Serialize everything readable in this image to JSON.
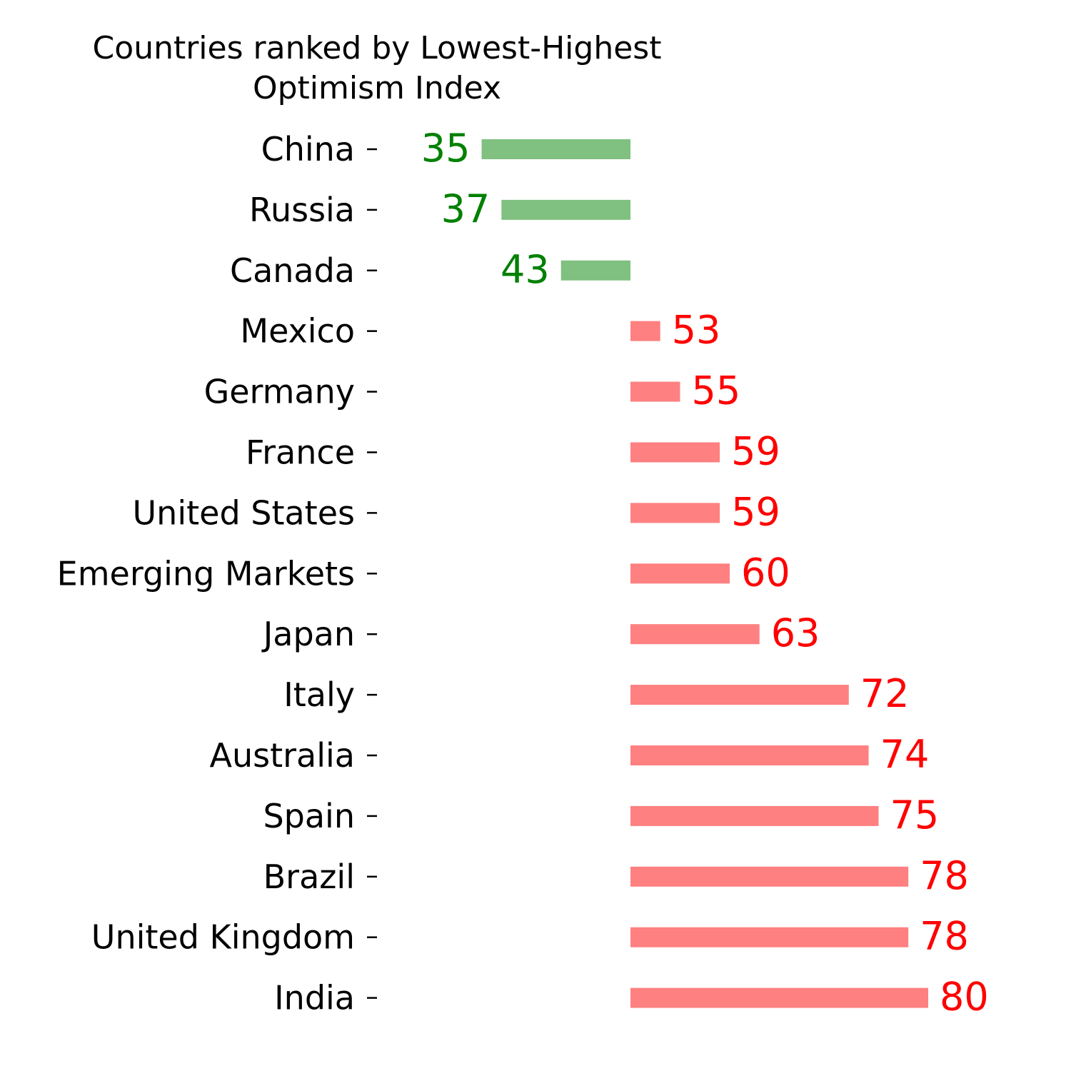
{
  "chart_data": {
    "type": "bar",
    "orientation": "horizontal",
    "title": "Countries ranked by Lowest-Highest Optimism Index",
    "title_lines": [
      "Countries ranked by Lowest-Highest",
      "Optimism Index"
    ],
    "baseline": 50,
    "categories": [
      "China",
      "Russia",
      "Canada",
      "Mexico",
      "Germany",
      "France",
      "United States",
      "Emerging Markets",
      "Japan",
      "Italy",
      "Australia",
      "Spain",
      "Brazil",
      "United Kingdom",
      "India"
    ],
    "values": [
      35,
      37,
      43,
      53,
      55,
      59,
      59,
      60,
      63,
      72,
      74,
      75,
      78,
      78,
      80
    ],
    "value_labels": [
      "35",
      "37",
      "43",
      "53",
      "55",
      "59",
      "59",
      "60",
      "63",
      "72",
      "74",
      "75",
      "78",
      "78",
      "80"
    ],
    "colors": {
      "below_baseline_bar": "#80c080",
      "below_baseline_text": "#008000",
      "above_baseline_bar": "#ff8080",
      "above_baseline_text": "#ff0000"
    },
    "grid": false,
    "xaxis_visible": false
  }
}
